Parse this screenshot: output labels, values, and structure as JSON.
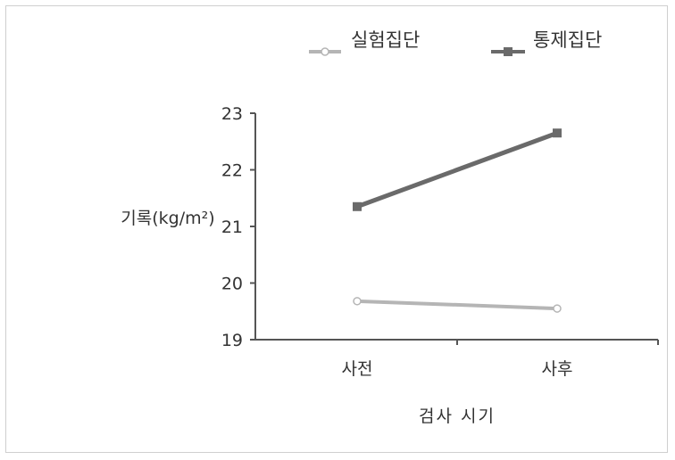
{
  "chart_data": {
    "type": "line",
    "title": "",
    "categories": [
      "사전",
      "사후"
    ],
    "xlabel": "검사 시기",
    "ylabel": "기록(kg/m²)",
    "ylim": [
      19,
      23
    ],
    "yticks": [
      "19",
      "20",
      "21",
      "22",
      "23"
    ],
    "grid": false,
    "legend_position": "top-right",
    "series": [
      {
        "name": "실험집단",
        "values": [
          19.68,
          19.55
        ],
        "color": "#b5b5b5",
        "marker": "circle"
      },
      {
        "name": "통제집단",
        "values": [
          21.35,
          22.65
        ],
        "color": "#6a6a6a",
        "marker": "square"
      }
    ]
  }
}
